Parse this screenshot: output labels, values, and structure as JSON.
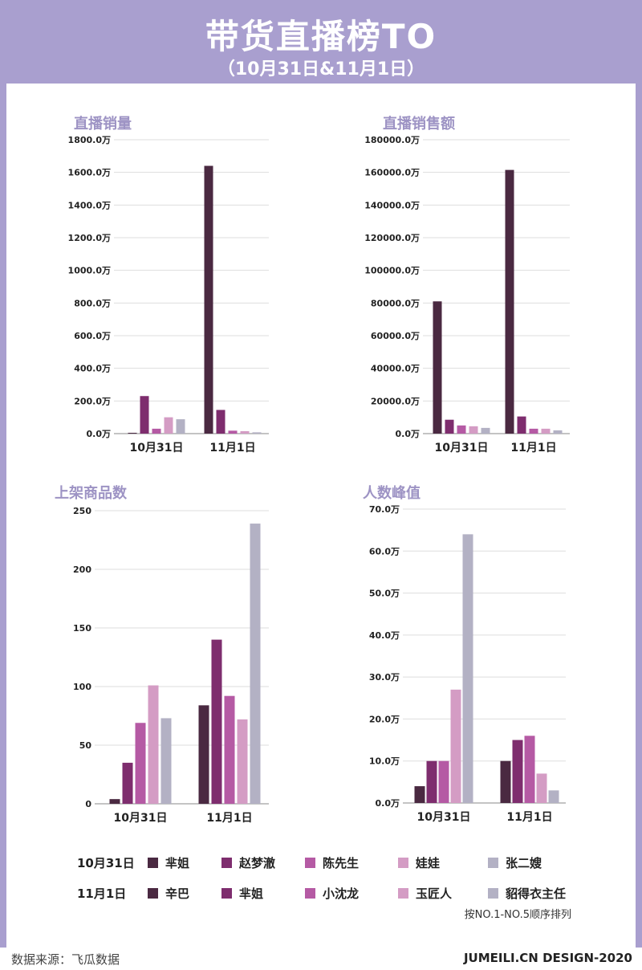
{
  "header": {
    "title": "带货直播榜TO",
    "subtitle": "（10月31日&11月1日）"
  },
  "colors": [
    "#4a2941",
    "#7e2d6e",
    "#b55aa4",
    "#d49cc4",
    "#b3b1c4"
  ],
  "chart_data": [
    {
      "type": "bar",
      "title": "直播销量",
      "categories": [
        "10月31日",
        "11月1日"
      ],
      "ylim": [
        0,
        1800
      ],
      "yticks": [
        "0.0万",
        "200.0万",
        "400.0万",
        "600.0万",
        "800.0万",
        "1000.0万",
        "1200.0万",
        "1400.0万",
        "1600.0万",
        "1800.0万"
      ],
      "series": [
        {
          "values": [
            5,
            1640
          ]
        },
        {
          "values": [
            230,
            145
          ]
        },
        {
          "values": [
            30,
            18
          ]
        },
        {
          "values": [
            100,
            15
          ]
        },
        {
          "values": [
            88,
            8
          ]
        }
      ]
    },
    {
      "type": "bar",
      "title": "直播销售额",
      "categories": [
        "10月31日",
        "11月1日"
      ],
      "ylim": [
        0,
        180000
      ],
      "yticks": [
        "0.0万",
        "20000.0万",
        "40000.0万",
        "60000.0万",
        "80000.0万",
        "100000.0万",
        "120000.0万",
        "140000.0万",
        "160000.0万",
        "180000.0万"
      ],
      "series": [
        {
          "values": [
            81000,
            161500
          ]
        },
        {
          "values": [
            8500,
            10500
          ]
        },
        {
          "values": [
            5000,
            3000
          ]
        },
        {
          "values": [
            4500,
            3000
          ]
        },
        {
          "values": [
            3500,
            2000
          ]
        }
      ]
    },
    {
      "type": "bar",
      "title": "上架商品数",
      "categories": [
        "10月31日",
        "11月1日"
      ],
      "ylim": [
        0,
        250
      ],
      "yticks": [
        "0",
        "50",
        "100",
        "150",
        "200",
        "250"
      ],
      "series": [
        {
          "values": [
            4,
            84
          ]
        },
        {
          "values": [
            35,
            140
          ]
        },
        {
          "values": [
            69,
            92
          ]
        },
        {
          "values": [
            101,
            72
          ]
        },
        {
          "values": [
            73,
            239
          ]
        }
      ]
    },
    {
      "type": "bar",
      "title": "人数峰值",
      "categories": [
        "10月31日",
        "11月1日"
      ],
      "ylim": [
        0,
        70
      ],
      "yticks": [
        "0.0万",
        "10.0万",
        "20.0万",
        "30.0万",
        "40.0万",
        "50.0万",
        "60.0万",
        "70.0万"
      ],
      "series": [
        {
          "values": [
            4,
            10
          ]
        },
        {
          "values": [
            10,
            15
          ]
        },
        {
          "values": [
            10,
            16
          ]
        },
        {
          "values": [
            27,
            7
          ]
        },
        {
          "values": [
            64,
            3
          ]
        }
      ]
    }
  ],
  "legend": {
    "rows": [
      {
        "date": "10月31日",
        "names": [
          "芈姐",
          "赵梦澈",
          "陈先生",
          "娃娃",
          "张二嫂"
        ]
      },
      {
        "date": "11月1日",
        "names": [
          "辛巴",
          "芈姐",
          "小沈龙",
          "玉匠人",
          "貂得衣主任"
        ]
      }
    ],
    "note": "按NO.1-NO.5顺序排列"
  },
  "footer": {
    "source": "数据来源：飞瓜数据",
    "credit": "JUMEILI.CN DESIGN-2020"
  }
}
